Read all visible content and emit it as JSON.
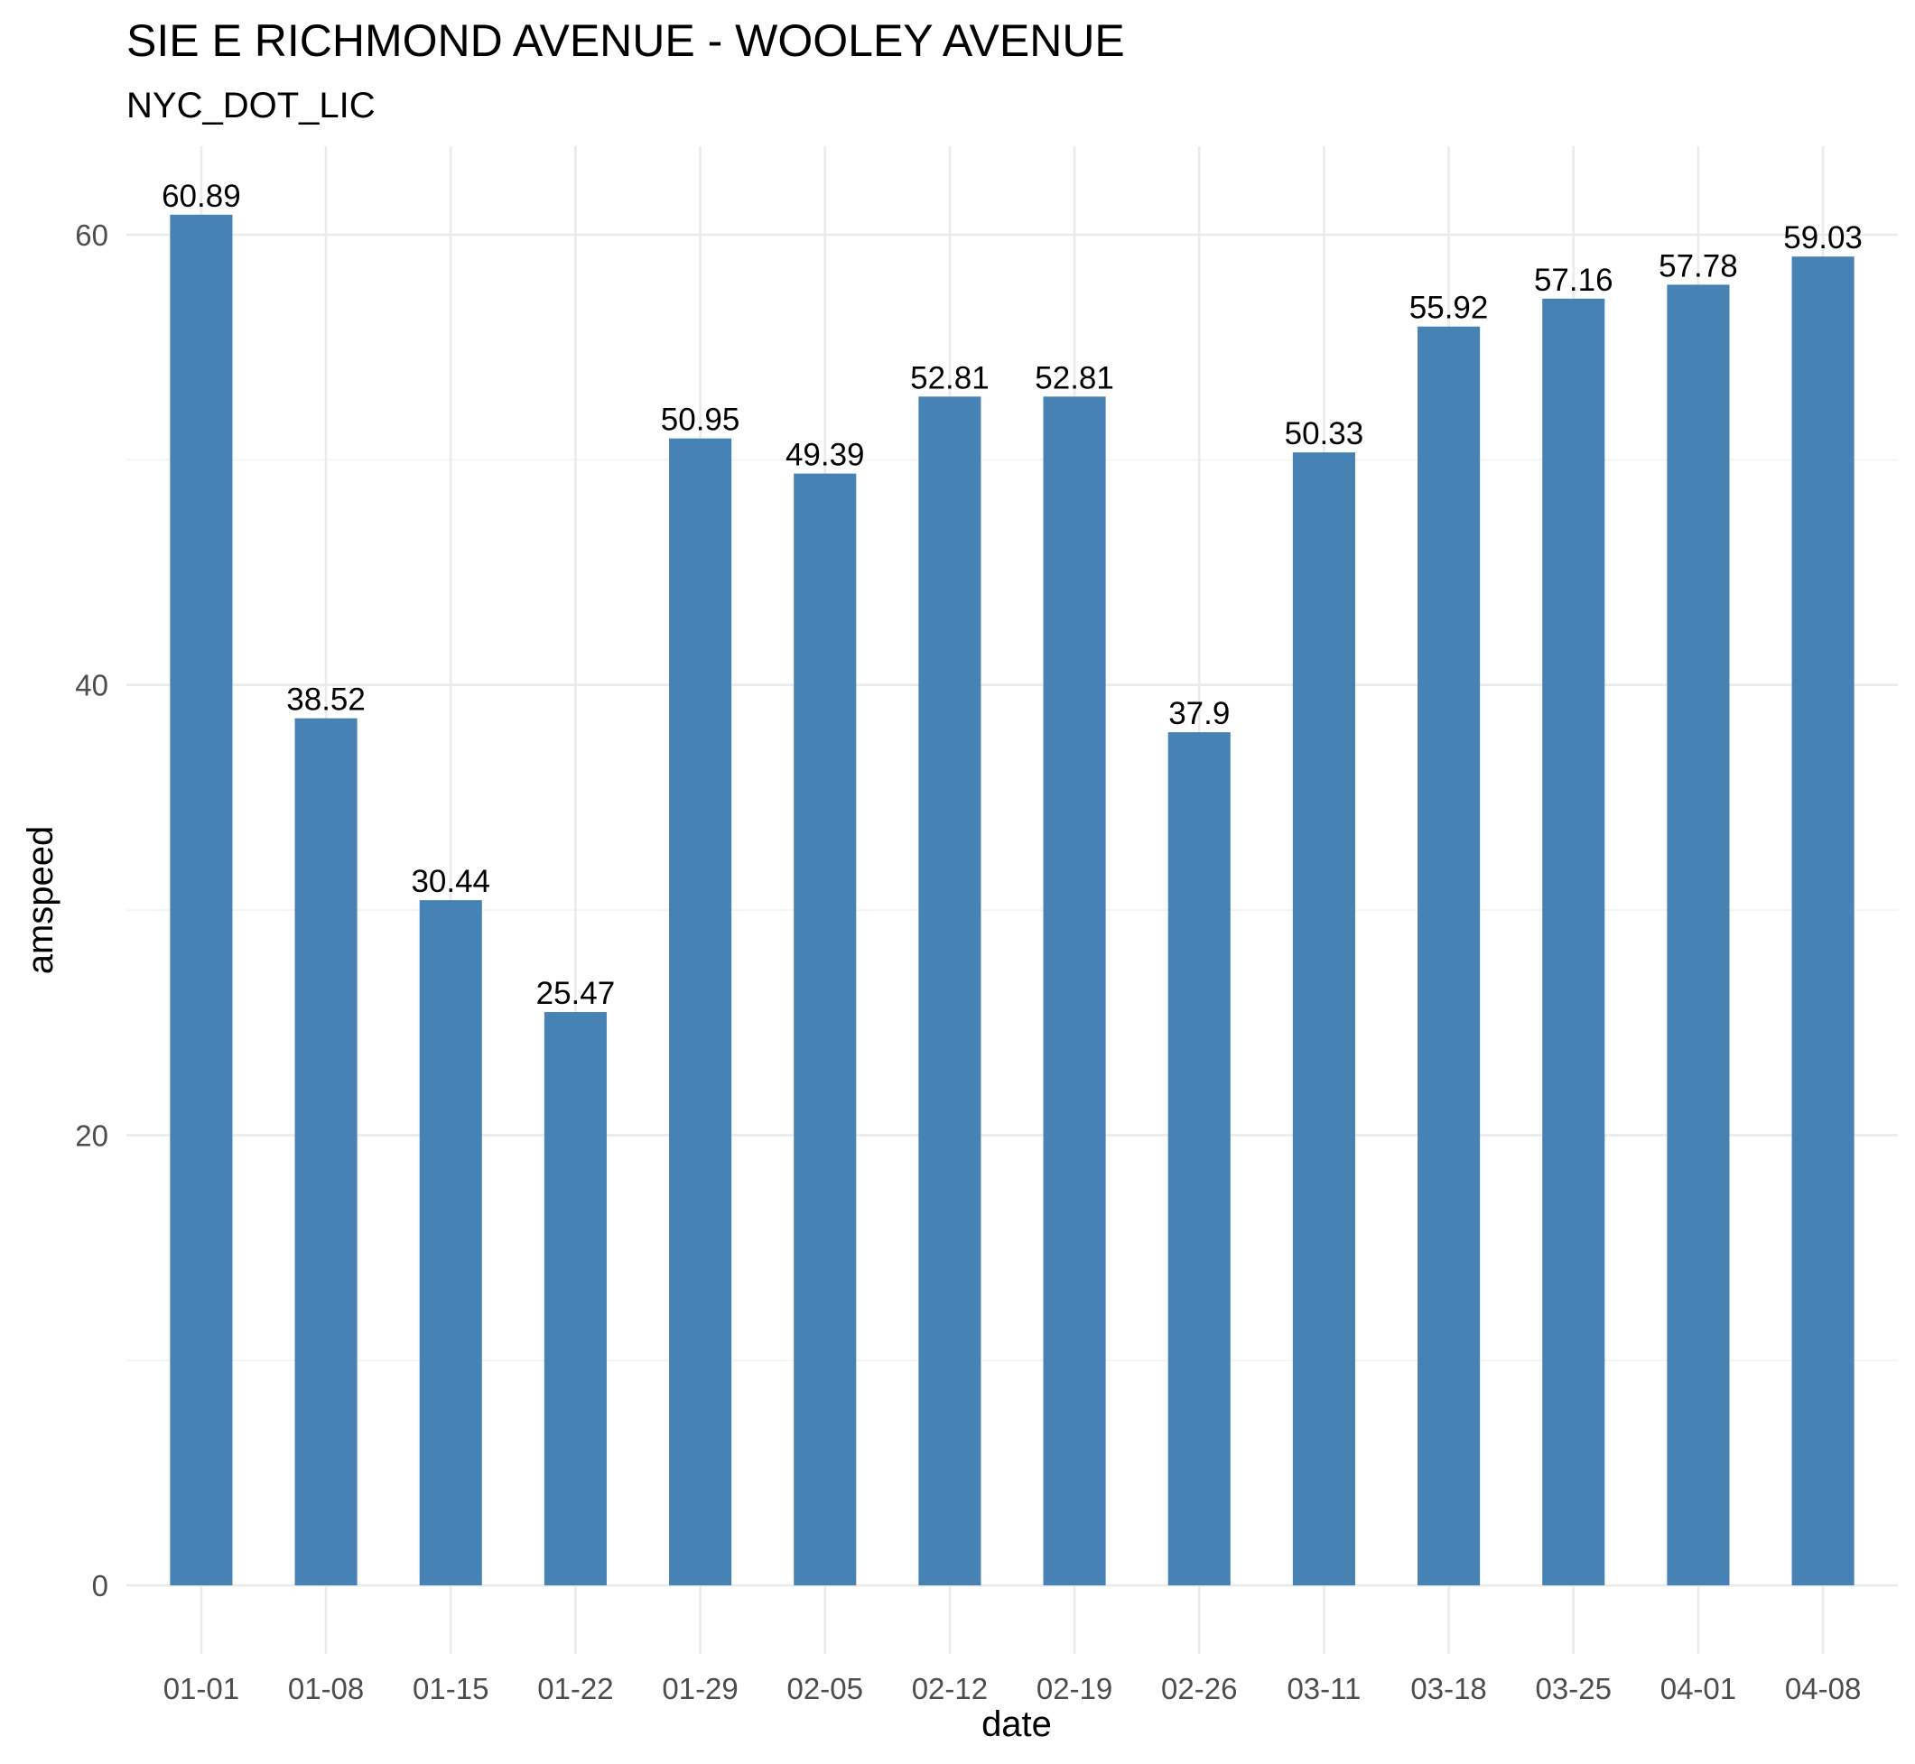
{
  "chart_data": {
    "type": "bar",
    "title": "SIE E RICHMOND AVENUE - WOOLEY AVENUE",
    "subtitle": "NYC_DOT_LIC",
    "xlabel": "date",
    "ylabel": "amspeed",
    "categories": [
      "01-01",
      "01-08",
      "01-15",
      "01-22",
      "01-29",
      "02-05",
      "02-12",
      "02-19",
      "02-26",
      "03-11",
      "03-18",
      "03-25",
      "04-01",
      "04-08"
    ],
    "values": [
      60.89,
      38.52,
      30.44,
      25.47,
      50.95,
      49.39,
      52.81,
      52.81,
      37.9,
      50.33,
      55.92,
      57.16,
      57.78,
      59.03
    ],
    "data_labels": [
      "60.89",
      "38.52",
      "30.44",
      "25.47",
      "50.95",
      "49.39",
      "52.81",
      "52.81",
      "37.9",
      "50.33",
      "55.92",
      "57.16",
      "57.78",
      "59.03"
    ],
    "ylim": [
      -3.04,
      63.93
    ],
    "yticks": [
      0,
      20,
      40,
      60
    ],
    "ytick_labels": [
      "0",
      "20",
      "40",
      "60"
    ],
    "bar_color": "#4682b4",
    "grid": true,
    "legend": "none"
  }
}
